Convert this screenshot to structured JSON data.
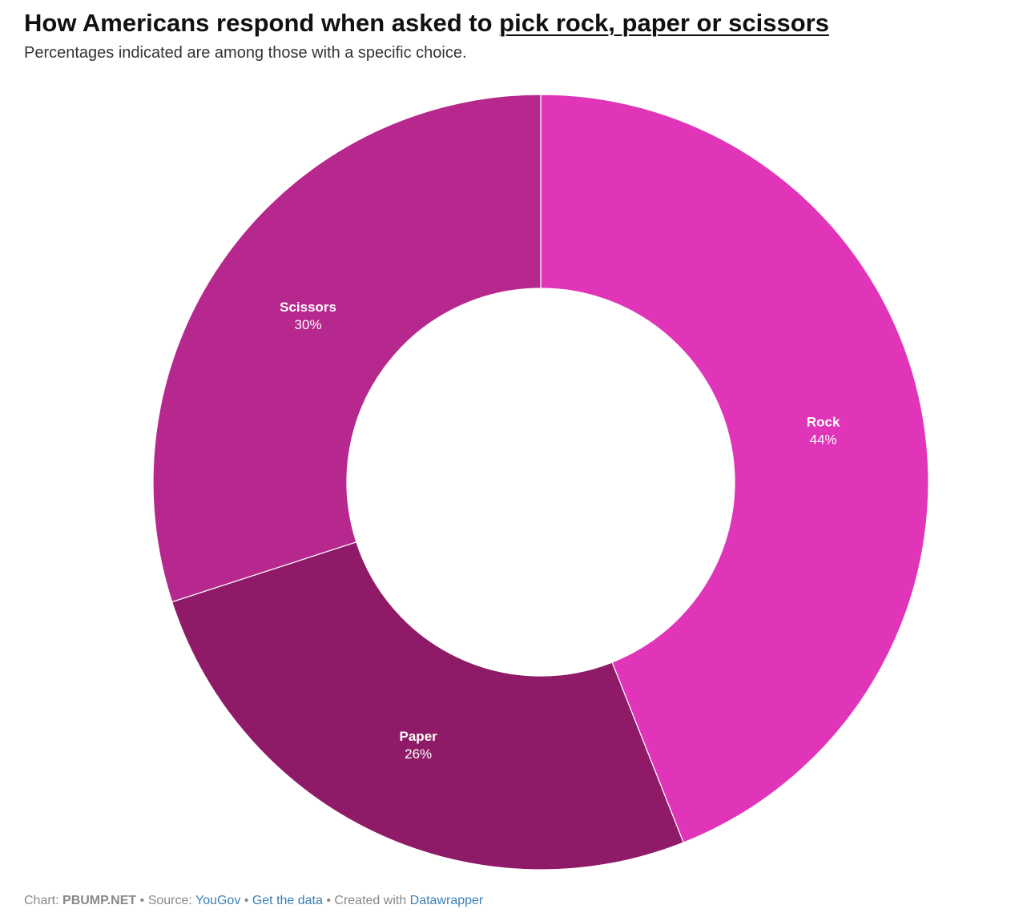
{
  "header": {
    "title_prefix": "How Americans respond when asked to ",
    "title_link": "pick rock, paper or scissors",
    "subtitle": "Percentages indicated are among those with a specific choice."
  },
  "chart_data": {
    "type": "pie",
    "donut": true,
    "title": "How Americans respond when asked to pick rock, paper or scissors",
    "subtitle": "Percentages indicated are among those with a specific choice.",
    "start_angle_deg": 0,
    "direction": "clockwise",
    "slices": [
      {
        "name": "Rock",
        "value": 44,
        "label": "44%",
        "color": "#e035b8"
      },
      {
        "name": "Paper",
        "value": 26,
        "label": "26%",
        "color": "#8f1b68"
      },
      {
        "name": "Scissors",
        "value": 30,
        "label": "30%",
        "color": "#b6288d"
      }
    ],
    "slice_border_color": "#ffffff",
    "label_color": "#ffffff"
  },
  "footer": {
    "chart_prefix": "Chart: ",
    "chart_by": "PBUMP.NET",
    "sep1": " • ",
    "source_prefix": "Source: ",
    "source": "YouGov",
    "sep2": " • ",
    "get_data": "Get the data",
    "sep3": " • ",
    "created_prefix": "Created with ",
    "created_with": "Datawrapper"
  }
}
